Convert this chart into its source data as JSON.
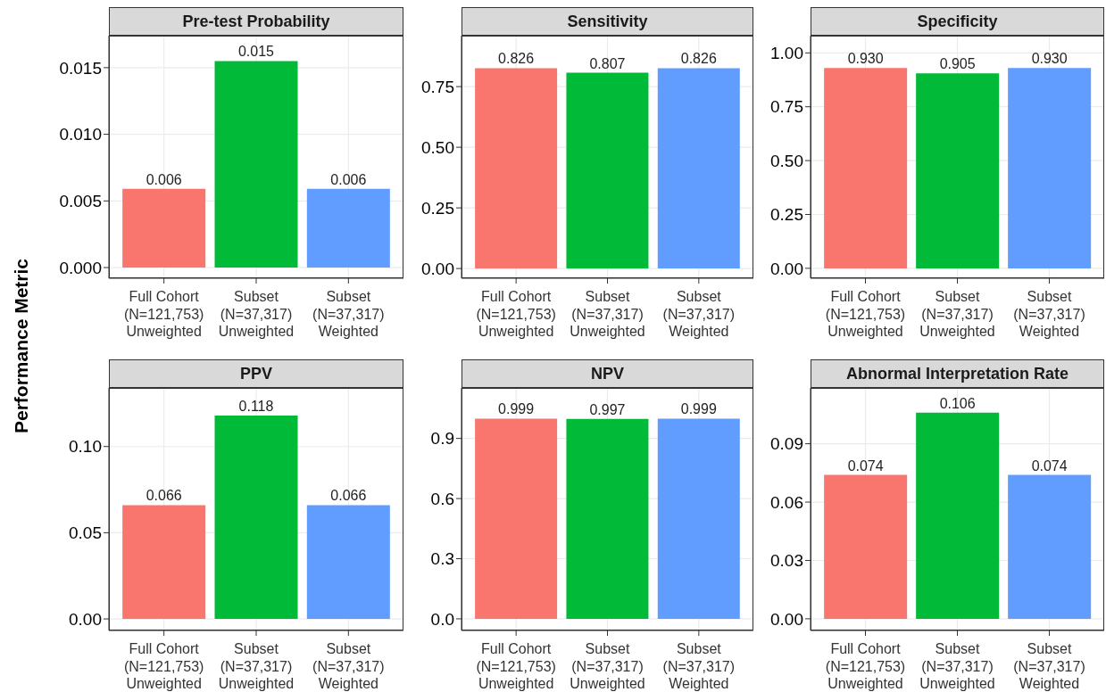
{
  "chart_data": [
    {
      "type": "bar",
      "title": "Pre-test Probability",
      "ylabel": "Performance Metric",
      "categories": [
        "Full Cohort\n(N=121,753)\nUnweighted",
        "Subset\n(N=37,317)\nUnweighted",
        "Subset\n(N=37,317)\nWeighted"
      ],
      "values": [
        0.0059,
        0.0155,
        0.0059
      ],
      "value_labels": [
        "0.006",
        "0.015",
        "0.006"
      ],
      "colors": [
        "#f8766d",
        "#00ba38",
        "#619cff"
      ],
      "ylim": [
        -0.0008,
        0.0174
      ],
      "yticks": [
        {
          "value": 0,
          "label": "0.000"
        },
        {
          "value": 0.005,
          "label": "0.005"
        },
        {
          "value": 0.01,
          "label": "0.010"
        },
        {
          "value": 0.015,
          "label": "0.015"
        }
      ],
      "grid": true
    },
    {
      "type": "bar",
      "title": "Sensitivity",
      "categories": [
        "Full Cohort\n(N=121,753)\nUnweighted",
        "Subset\n(N=37,317)\nUnweighted",
        "Subset\n(N=37,317)\nWeighted"
      ],
      "values": [
        0.826,
        0.807,
        0.826
      ],
      "value_labels": [
        "0.826",
        "0.807",
        "0.826"
      ],
      "colors": [
        "#f8766d",
        "#00ba38",
        "#619cff"
      ],
      "ylim": [
        -0.04,
        0.96
      ],
      "yticks": [
        {
          "value": 0,
          "label": "0.00"
        },
        {
          "value": 0.25,
          "label": "0.25"
        },
        {
          "value": 0.5,
          "label": "0.50"
        },
        {
          "value": 0.75,
          "label": "0.75"
        }
      ],
      "grid": true
    },
    {
      "type": "bar",
      "title": "Specificity",
      "categories": [
        "Full Cohort\n(N=121,753)\nUnweighted",
        "Subset\n(N=37,317)\nUnweighted",
        "Subset\n(N=37,317)\nWeighted"
      ],
      "values": [
        0.93,
        0.905,
        0.93
      ],
      "value_labels": [
        "0.930",
        "0.905",
        "0.930"
      ],
      "colors": [
        "#f8766d",
        "#00ba38",
        "#619cff"
      ],
      "ylim": [
        -0.046,
        1.08
      ],
      "yticks": [
        {
          "value": 0,
          "label": "0.00"
        },
        {
          "value": 0.25,
          "label": "0.25"
        },
        {
          "value": 0.5,
          "label": "0.50"
        },
        {
          "value": 0.75,
          "label": "0.75"
        },
        {
          "value": 1,
          "label": "1.00"
        }
      ],
      "grid": true
    },
    {
      "type": "bar",
      "title": "PPV",
      "categories": [
        "Full Cohort\n(N=121,753)\nUnweighted",
        "Subset\n(N=37,317)\nUnweighted",
        "Subset\n(N=37,317)\nWeighted"
      ],
      "values": [
        0.066,
        0.118,
        0.066
      ],
      "value_labels": [
        "0.066",
        "0.118",
        "0.066"
      ],
      "colors": [
        "#f8766d",
        "#00ba38",
        "#619cff"
      ],
      "ylim": [
        -0.0067,
        0.134
      ],
      "yticks": [
        {
          "value": 0,
          "label": "0.00"
        },
        {
          "value": 0.05,
          "label": "0.05"
        },
        {
          "value": 0.1,
          "label": "0.10"
        }
      ],
      "grid": true
    },
    {
      "type": "bar",
      "title": "NPV",
      "categories": [
        "Full Cohort\n(N=121,753)\nUnweighted",
        "Subset\n(N=37,317)\nUnweighted",
        "Subset\n(N=37,317)\nWeighted"
      ],
      "values": [
        0.999,
        0.997,
        0.999
      ],
      "value_labels": [
        "0.999",
        "0.997",
        "0.999"
      ],
      "colors": [
        "#f8766d",
        "#00ba38",
        "#619cff"
      ],
      "ylim": [
        -0.058,
        1.152
      ],
      "yticks": [
        {
          "value": 0,
          "label": "0.0"
        },
        {
          "value": 0.3,
          "label": "0.3"
        },
        {
          "value": 0.6,
          "label": "0.6"
        },
        {
          "value": 0.9,
          "label": "0.9"
        }
      ],
      "grid": true
    },
    {
      "type": "bar",
      "title": "Abnormal Interpretation Rate",
      "categories": [
        "Full Cohort\n(N=121,753)\nUnweighted",
        "Subset\n(N=37,317)\nUnweighted",
        "Subset\n(N=37,317)\nWeighted"
      ],
      "values": [
        0.074,
        0.106,
        0.074
      ],
      "value_labels": [
        "0.074",
        "0.106",
        "0.074"
      ],
      "colors": [
        "#f8766d",
        "#00ba38",
        "#619cff"
      ],
      "ylim": [
        -0.006,
        0.1187
      ],
      "yticks": [
        {
          "value": 0,
          "label": "0.00"
        },
        {
          "value": 0.03,
          "label": "0.03"
        },
        {
          "value": 0.06,
          "label": "0.06"
        },
        {
          "value": 0.09,
          "label": "0.09"
        }
      ],
      "grid": true
    }
  ]
}
